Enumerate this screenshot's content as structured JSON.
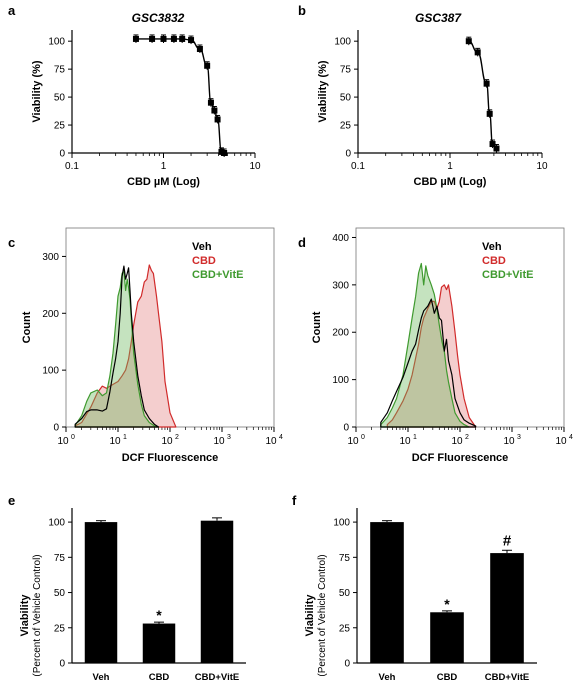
{
  "panels": {
    "a": "a",
    "b": "b",
    "c": "c",
    "d": "d",
    "e": "e",
    "f": "f"
  },
  "chart_data": [
    {
      "panel": "a",
      "type": "scatter",
      "title": "GSC3832",
      "xlabel": "CBD µM (Log)",
      "ylabel": "Viability (%)",
      "xscale": "log",
      "xlim": [
        0.1,
        10
      ],
      "ylim": [
        0,
        110
      ],
      "xticks": [
        "0.1",
        "1",
        "10"
      ],
      "yticks": [
        "0",
        "25",
        "50",
        "75",
        "100"
      ],
      "x": [
        0.5,
        0.75,
        1.0,
        1.3,
        1.6,
        2.0,
        2.5,
        3.0,
        3.3,
        3.6,
        3.9,
        4.3,
        4.6
      ],
      "y": [
        102,
        102,
        102,
        102,
        102,
        101,
        93,
        78,
        45,
        38,
        30,
        1,
        0
      ],
      "fit": true
    },
    {
      "panel": "b",
      "type": "scatter",
      "title": "GSC387",
      "xlabel": "CBD µM (Log)",
      "ylabel": "Viability (%)",
      "xscale": "log",
      "xlim": [
        0.1,
        10
      ],
      "ylim": [
        0,
        110
      ],
      "xticks": [
        "0.1",
        "1",
        "10"
      ],
      "yticks": [
        "0",
        "25",
        "50",
        "75",
        "100"
      ],
      "x": [
        1.6,
        2.0,
        2.5,
        2.7,
        2.9,
        3.2
      ],
      "y": [
        100,
        90,
        62,
        35,
        8,
        4
      ],
      "fit": true
    },
    {
      "panel": "c",
      "type": "area",
      "xlabel": "DCF Fluorescence",
      "ylabel": "Count",
      "xscale": "log",
      "xlim": [
        1,
        10000
      ],
      "ylim": [
        0,
        350
      ],
      "yticks": [
        "0",
        "100",
        "200",
        "300"
      ],
      "legend_placement": "top-right",
      "series": [
        {
          "name": "Veh",
          "color": "#000000",
          "fill": "none",
          "x": [
            1.5,
            2,
            2.5,
            3,
            4,
            5,
            6,
            7,
            8,
            9,
            10,
            11,
            12,
            13,
            14,
            15,
            16,
            17,
            18,
            20,
            24,
            28,
            32,
            40,
            50,
            60
          ],
          "y": [
            5,
            15,
            27,
            30,
            30,
            28,
            32,
            62,
            95,
            120,
            150,
            200,
            265,
            283,
            260,
            270,
            280,
            240,
            200,
            150,
            90,
            55,
            30,
            15,
            5,
            0
          ]
        },
        {
          "name": "CBD",
          "color": "#d12b2b",
          "fill": "rgba(224,114,114,0.35)",
          "x": [
            1.5,
            2,
            3,
            4,
            5,
            6,
            8,
            10,
            12,
            14,
            16,
            18,
            20,
            24,
            28,
            32,
            36,
            40,
            44,
            48,
            55,
            60,
            70,
            80,
            100,
            130
          ],
          "y": [
            2,
            8,
            35,
            60,
            72,
            68,
            75,
            80,
            90,
            100,
            120,
            150,
            180,
            220,
            230,
            255,
            260,
            285,
            275,
            270,
            230,
            200,
            150,
            80,
            25,
            0
          ]
        },
        {
          "name": "CBD+VitE",
          "color": "#3f9a2f",
          "fill": "rgba(110,185,95,0.4)",
          "x": [
            1.5,
            2,
            2.5,
            3,
            4,
            5,
            6,
            7,
            8,
            9,
            10,
            11,
            12,
            13,
            14,
            15,
            16,
            17,
            18,
            20,
            24,
            28,
            32,
            40,
            50,
            60
          ],
          "y": [
            3,
            20,
            45,
            60,
            65,
            55,
            60,
            90,
            130,
            180,
            230,
            245,
            270,
            275,
            240,
            260,
            245,
            225,
            190,
            130,
            75,
            40,
            20,
            8,
            2,
            0
          ]
        }
      ]
    },
    {
      "panel": "d",
      "type": "area",
      "xlabel": "DCF Fluorescence",
      "ylabel": "Count",
      "xscale": "log",
      "xlim": [
        1,
        10000
      ],
      "ylim": [
        0,
        420
      ],
      "yticks": [
        "0",
        "100",
        "200",
        "300",
        "400"
      ],
      "legend_placement": "top-right",
      "series": [
        {
          "name": "Veh",
          "color": "#000000",
          "fill": "none",
          "x": [
            3,
            4,
            5,
            6,
            8,
            10,
            12,
            14,
            16,
            18,
            20,
            24,
            28,
            32,
            36,
            40,
            44,
            50,
            55,
            60,
            70,
            80,
            100,
            120,
            150,
            200
          ],
          "y": [
            10,
            30,
            55,
            75,
            105,
            135,
            160,
            175,
            205,
            230,
            245,
            255,
            270,
            240,
            255,
            230,
            225,
            160,
            185,
            140,
            110,
            60,
            30,
            15,
            8,
            2
          ]
        },
        {
          "name": "CBD",
          "color": "#d12b2b",
          "fill": "rgba(224,114,114,0.35)",
          "x": [
            4,
            5,
            6,
            8,
            10,
            12,
            14,
            16,
            18,
            20,
            24,
            28,
            32,
            36,
            40,
            44,
            50,
            55,
            60,
            70,
            80,
            90,
            100,
            120,
            150,
            200
          ],
          "y": [
            5,
            15,
            30,
            55,
            80,
            110,
            145,
            175,
            210,
            230,
            250,
            265,
            265,
            250,
            265,
            295,
            300,
            290,
            300,
            255,
            200,
            150,
            110,
            60,
            20,
            0
          ]
        },
        {
          "name": "CBD+VitE",
          "color": "#3f9a2f",
          "fill": "rgba(110,185,95,0.4)",
          "x": [
            3,
            4,
            5,
            6,
            8,
            10,
            12,
            14,
            16,
            18,
            20,
            22,
            24,
            28,
            32,
            36,
            40,
            45,
            50,
            55,
            60,
            70,
            80,
            100,
            120,
            150
          ],
          "y": [
            5,
            20,
            40,
            60,
            110,
            175,
            230,
            275,
            325,
            345,
            300,
            340,
            320,
            300,
            280,
            250,
            215,
            180,
            160,
            120,
            95,
            60,
            30,
            12,
            5,
            0
          ]
        }
      ]
    },
    {
      "panel": "e",
      "type": "bar",
      "ylabel": "Viability",
      "ylabel2": "(Percent of Vehicle Control)",
      "categories": [
        "Veh",
        "CBD",
        "CBD+VitE"
      ],
      "values": [
        100,
        28,
        101
      ],
      "errors": [
        1,
        1,
        2
      ],
      "annotations": [
        "",
        "*",
        ""
      ],
      "ylim": [
        0,
        110
      ],
      "yticks": [
        "0",
        "25",
        "50",
        "75",
        "100"
      ]
    },
    {
      "panel": "f",
      "type": "bar",
      "ylabel": "Viability",
      "ylabel2": "(Percent of Vehicle Control)",
      "categories": [
        "Veh",
        "CBD",
        "CBD+VitE"
      ],
      "values": [
        100,
        36,
        78
      ],
      "errors": [
        1,
        1,
        2
      ],
      "annotations": [
        "",
        "*",
        "#"
      ],
      "ylim": [
        0,
        110
      ],
      "yticks": [
        "0",
        "25",
        "50",
        "75",
        "100"
      ]
    }
  ]
}
